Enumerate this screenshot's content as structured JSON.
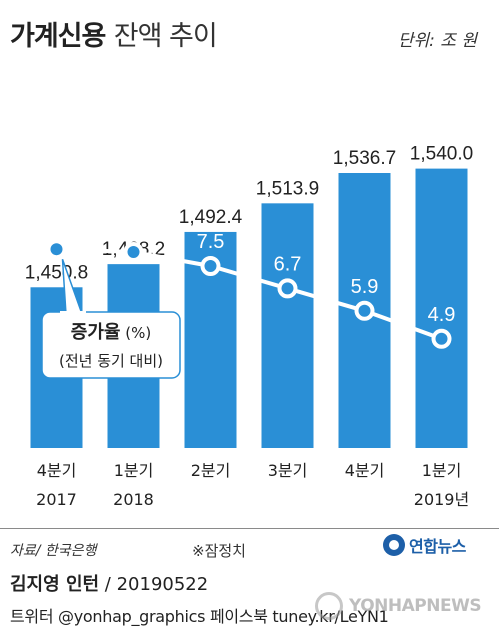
{
  "header": {
    "title_main": "가계신용",
    "title_sub": "잔액 추이",
    "unit": "단위: 조 원"
  },
  "colors": {
    "bar": "#2a8fd6",
    "line": "#ffffff",
    "marker_fill": "#2a8fd6",
    "callout_border": "#2a8fd6",
    "text": "#222222"
  },
  "chart_data": {
    "type": "bar",
    "categories": [
      [
        "4분기",
        "2017"
      ],
      [
        "1분기",
        "2018"
      ],
      [
        "2분기",
        ""
      ],
      [
        "3분기",
        ""
      ],
      [
        "4분기",
        ""
      ],
      [
        "1분기",
        "2019년"
      ]
    ],
    "series": [
      {
        "name": "",
        "type": "bar",
        "values": [
          1450.8,
          1468.2,
          1492.4,
          1513.9,
          1536.7,
          1540.0
        ],
        "labels": [
          "1,450.8",
          "1,468.2",
          "1,492.4",
          "1,513.9",
          "1,536.7",
          "1,540.0"
        ]
      },
      {
        "name": "증가율",
        "type": "line",
        "values": [
          8.1,
          8.0,
          7.5,
          6.7,
          5.9,
          4.9
        ],
        "labels": [
          "8.1",
          "8.0",
          "7.5",
          "6.7",
          "5.9",
          "4.9"
        ]
      }
    ],
    "legend": {
      "title": "증가율",
      "unit": "(%)",
      "desc": "(전년 동기 대비)"
    },
    "y_bar_range": [
      1330,
      1560
    ],
    "y_line_range": [
      1.0,
      12.0
    ],
    "grid": false
  },
  "footer": {
    "source": "자료/ 한국은행",
    "note": "※잠정치",
    "logo_text": "연합뉴스",
    "author_name": "김지영 인턴",
    "author_date": " / 20190522",
    "social": "트위터 @yonhap_graphics  페이스북 tuney.kr/LeYN1",
    "watermark": "YONHAPNEWS"
  }
}
